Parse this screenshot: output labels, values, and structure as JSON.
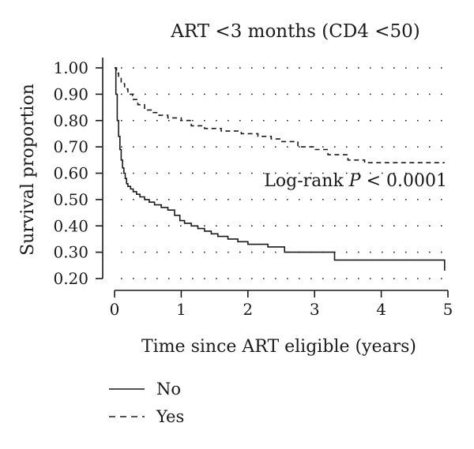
{
  "chart_data": {
    "type": "line",
    "title": "ART <3 months (CD4 <50)",
    "xlabel": "Time since ART eligible (years)",
    "ylabel": "Survival proportion",
    "xlim": [
      0,
      5
    ],
    "ylim": [
      0.2,
      1.0
    ],
    "x_ticks": [
      "0",
      "1",
      "2",
      "3",
      "4",
      "5"
    ],
    "y_ticks": [
      "1.00",
      "0.90",
      "0.80",
      "0.70",
      "0.60",
      "0.50",
      "0.40",
      "0.30",
      "0.20"
    ],
    "grid": "horizontal dotted",
    "step": true,
    "annotation": {
      "prefix": "Log-rank ",
      "italic": "P",
      "suffix": " < 0.0001"
    },
    "legend_position": "bottom-left",
    "series": [
      {
        "name": "No",
        "style": "solid",
        "x": [
          0,
          0.02,
          0.04,
          0.06,
          0.08,
          0.1,
          0.12,
          0.14,
          0.16,
          0.18,
          0.2,
          0.24,
          0.28,
          0.33,
          0.38,
          0.45,
          0.52,
          0.6,
          0.7,
          0.8,
          0.9,
          0.98,
          1.05,
          1.15,
          1.25,
          1.35,
          1.45,
          1.55,
          1.7,
          1.85,
          2.0,
          2.3,
          2.55,
          3.3,
          4.9,
          4.95
        ],
        "y": [
          1.0,
          0.9,
          0.8,
          0.74,
          0.69,
          0.65,
          0.62,
          0.6,
          0.58,
          0.56,
          0.55,
          0.54,
          0.53,
          0.52,
          0.51,
          0.5,
          0.49,
          0.48,
          0.47,
          0.46,
          0.44,
          0.42,
          0.41,
          0.4,
          0.39,
          0.38,
          0.37,
          0.36,
          0.35,
          0.34,
          0.33,
          0.32,
          0.3,
          0.27,
          0.27,
          0.23
        ]
      },
      {
        "name": "Yes",
        "style": "dashed",
        "x": [
          0,
          0.03,
          0.06,
          0.1,
          0.15,
          0.2,
          0.27,
          0.35,
          0.45,
          0.55,
          0.65,
          0.8,
          1.0,
          1.15,
          1.35,
          1.6,
          1.9,
          2.15,
          2.35,
          2.5,
          2.75,
          3.0,
          3.2,
          3.5,
          3.75,
          4.95
        ],
        "y": [
          1.0,
          0.98,
          0.96,
          0.94,
          0.92,
          0.9,
          0.88,
          0.86,
          0.84,
          0.83,
          0.82,
          0.81,
          0.8,
          0.78,
          0.77,
          0.76,
          0.75,
          0.74,
          0.73,
          0.72,
          0.7,
          0.69,
          0.67,
          0.65,
          0.64,
          0.64
        ]
      }
    ]
  }
}
